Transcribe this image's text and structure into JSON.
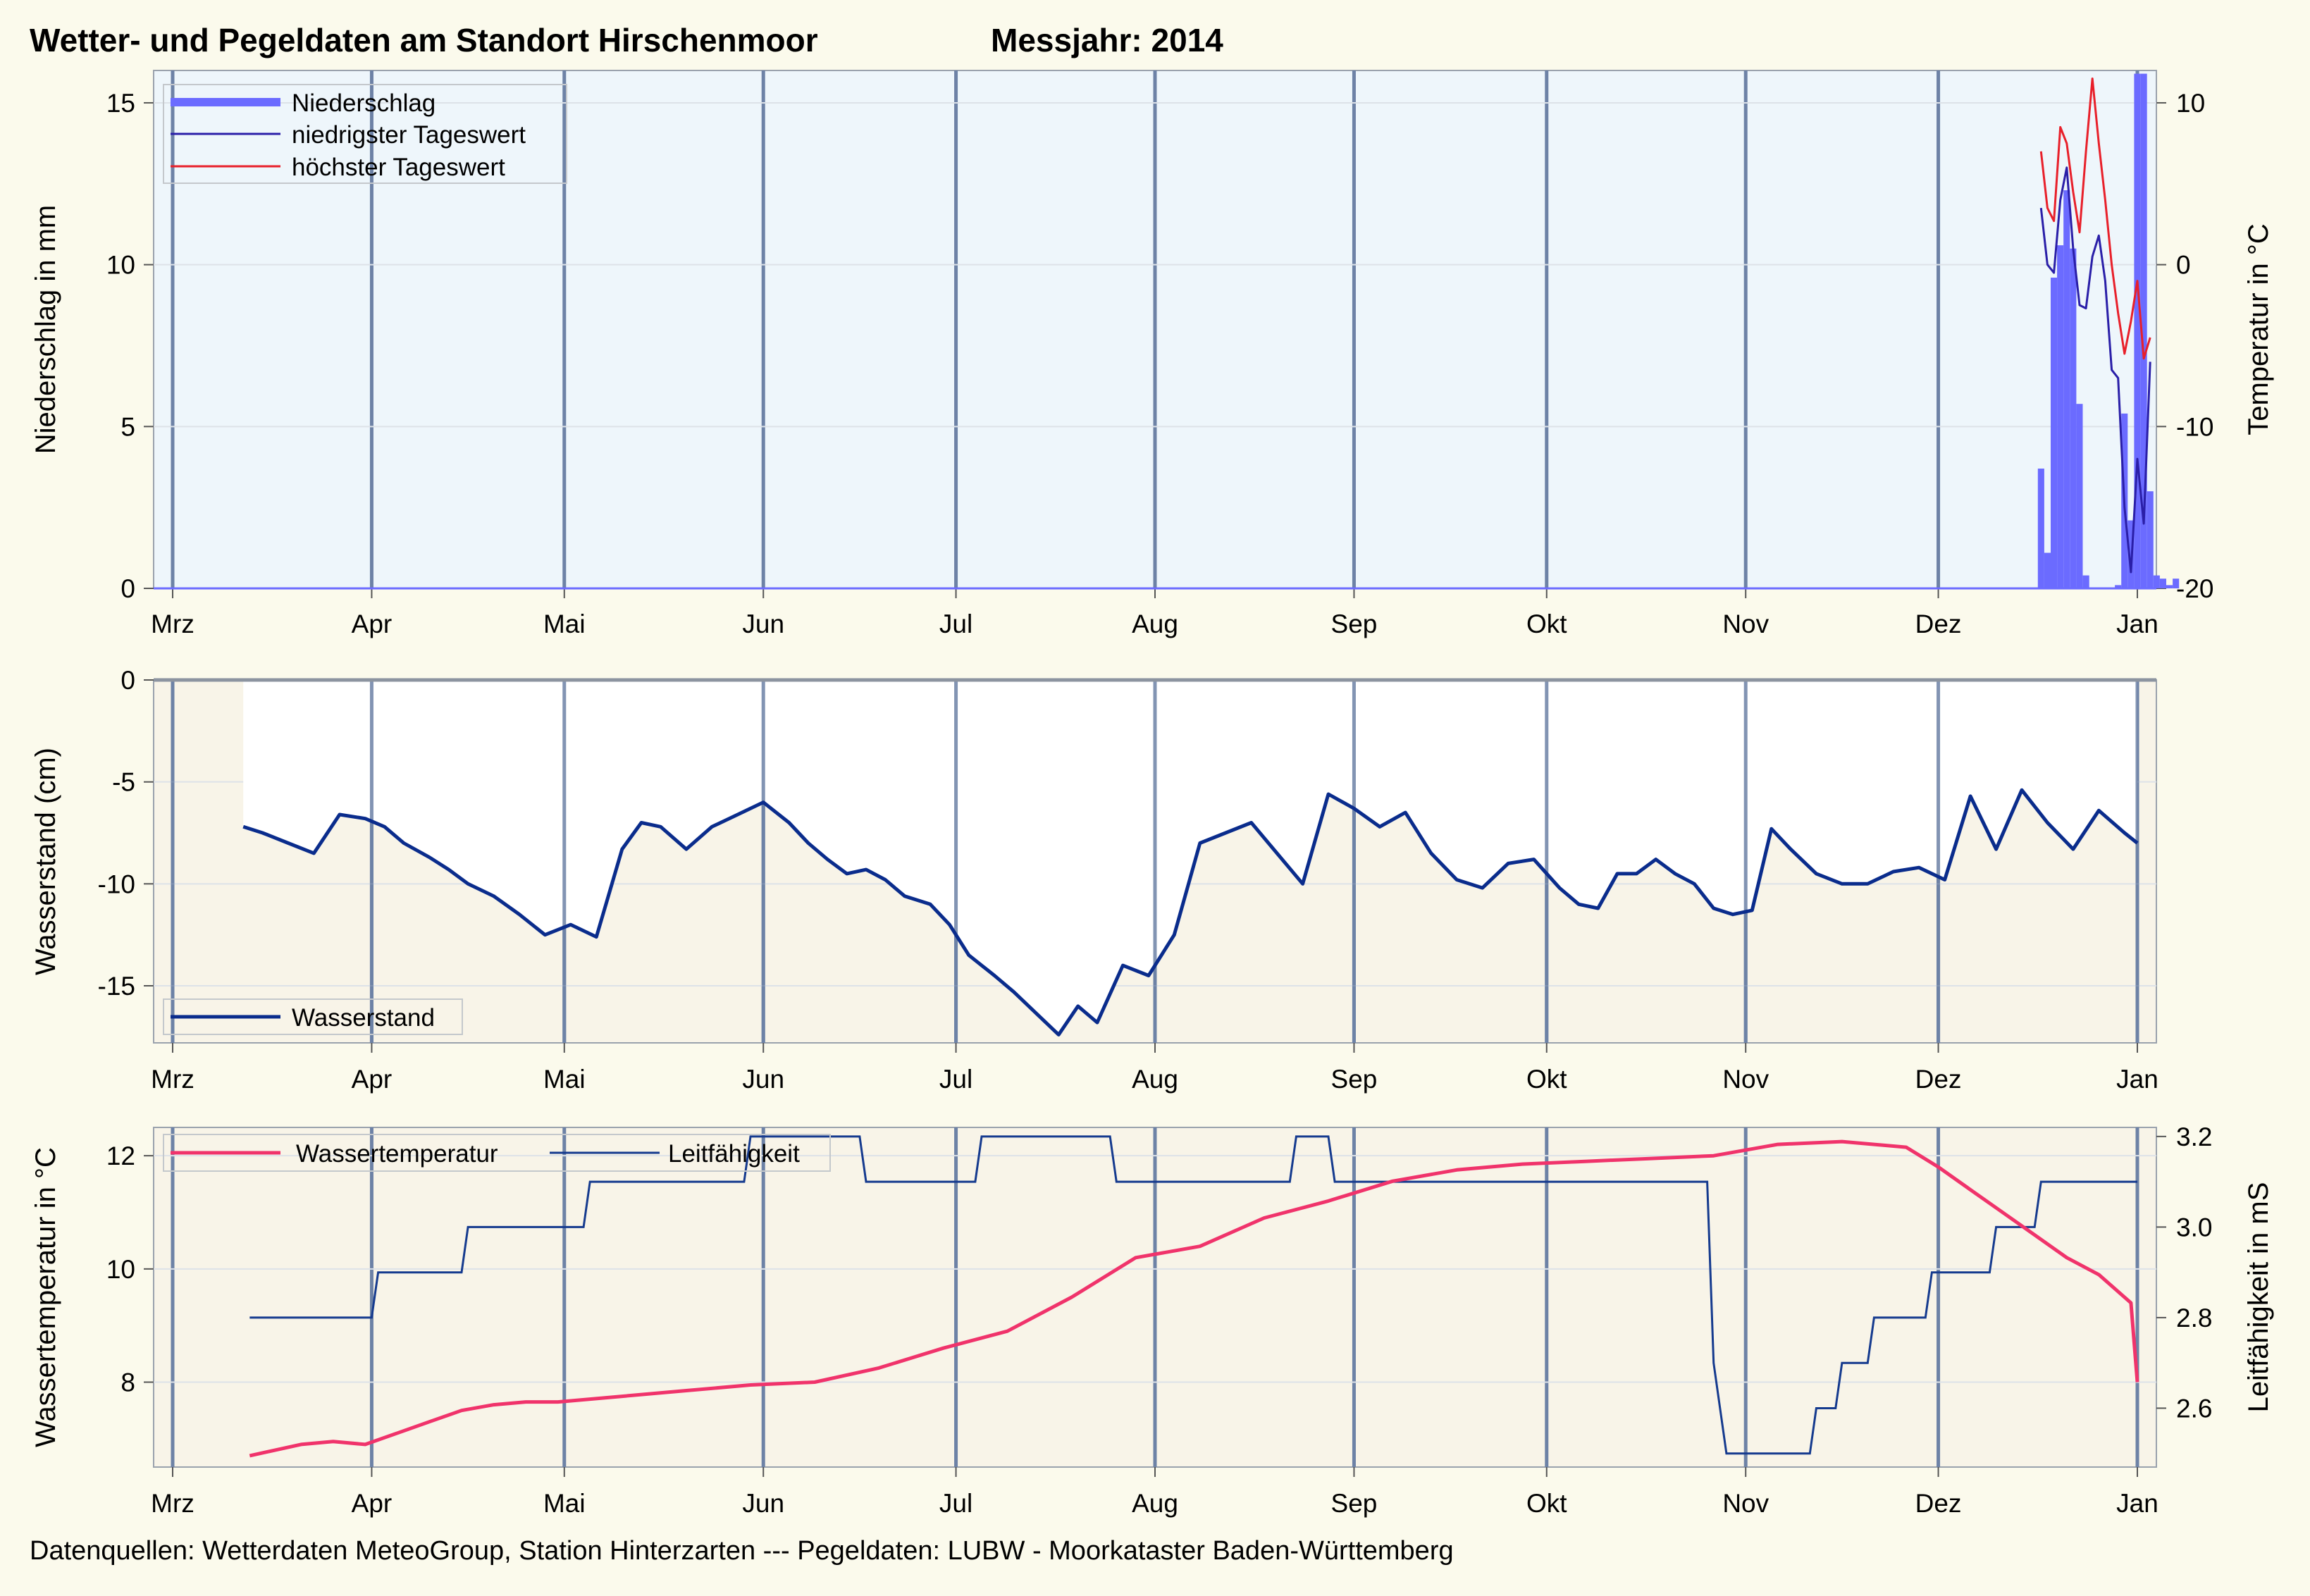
{
  "title": "Wetter- und Pegeldaten am Standort Hirschenmoor",
  "year_label": "Messjahr:  2014",
  "footer": "Datenquellen: Wetterdaten MeteoGroup, Station Hinterzarten --- Pegeldaten:  LUBW - Moorkataster Baden-Württemberg",
  "colors": {
    "precip": "#6b6bff",
    "tmin": "#2a1fa8",
    "tmax": "#e8202a",
    "water_level": "#0a2c8c",
    "water_temp": "#f0336b",
    "conductivity": "#153a8e",
    "panel1_bg": "#eef6fb",
    "panel_bg": "#f8f4e8",
    "month_line": "#6d82a6"
  },
  "chart_data": [
    {
      "type": "bar",
      "name": "weather",
      "xlabel": "",
      "months": [
        "Mrz",
        "Apr",
        "Mai",
        "Jun",
        "Jul",
        "Aug",
        "Sep",
        "Okt",
        "Nov",
        "Dez",
        "Jan"
      ],
      "ylabel": "Niederschlag in mm",
      "ylim": [
        0,
        16
      ],
      "yticks": [
        0,
        5,
        10,
        15
      ],
      "y2label": "Temperatur in °C",
      "y2lim": [
        -20,
        12
      ],
      "y2ticks": [
        -20,
        -10,
        0,
        10
      ],
      "grid": true,
      "legend_position": "top-left",
      "series": [
        {
          "name": "Niederschlag",
          "type": "bar",
          "days": [
            291,
            292,
            293,
            294,
            295,
            296,
            297,
            298,
            299,
            300,
            301,
            302,
            303,
            304,
            305,
            306,
            307,
            308,
            309,
            310,
            311,
            312
          ],
          "values": [
            3.7,
            1.1,
            9.6,
            10.6,
            12.3,
            10.5,
            5.7,
            0.4,
            0,
            0,
            0,
            0,
            0.1,
            5.4,
            2.1,
            15.9,
            15.9,
            3.0,
            0.4,
            0.3,
            0.1,
            0.3
          ]
        },
        {
          "name": "niedrigster Tageswert",
          "type": "line",
          "days": [
            291,
            292,
            293,
            294,
            295,
            296,
            297,
            298,
            299,
            300,
            301,
            302,
            303,
            304,
            305,
            306,
            307,
            308
          ],
          "values": [
            3.5,
            0,
            -0.5,
            4,
            6,
            1,
            -2.5,
            -2.7,
            0.5,
            1.8,
            -1,
            -6.5,
            -7,
            -15,
            -19,
            -12,
            -16,
            -6
          ]
        },
        {
          "name": "höchster Tageswert",
          "type": "line",
          "days": [
            291,
            292,
            293,
            294,
            295,
            296,
            297,
            298,
            299,
            300,
            301,
            302,
            303,
            304,
            305,
            306,
            307,
            308
          ],
          "values": [
            7,
            3.5,
            2.7,
            8.5,
            7.5,
            4.5,
            2,
            7,
            11.5,
            7.5,
            4,
            0,
            -3,
            -5.5,
            -3.5,
            -1,
            -5.8,
            -4.5
          ]
        }
      ]
    },
    {
      "type": "line",
      "name": "water_level",
      "xlabel": "",
      "months": [
        "Mrz",
        "Apr",
        "Mai",
        "Jun",
        "Jul",
        "Aug",
        "Sep",
        "Okt",
        "Nov",
        "Dez",
        "Jan"
      ],
      "ylabel": "Wasserstand (cm)",
      "ylim": [
        -17.8,
        0
      ],
      "yticks": [
        -15,
        -10,
        -5,
        0
      ],
      "grid": true,
      "legend_position": "bottom-left",
      "series": [
        {
          "name": "Wasserstand",
          "days": [
            11,
            14,
            18,
            22,
            26,
            30,
            33,
            36,
            40,
            43,
            46,
            50,
            54,
            58,
            62,
            66,
            70,
            73,
            76,
            80,
            84,
            88,
            92,
            96,
            99,
            102,
            105,
            108,
            111,
            114,
            118,
            121,
            124,
            128,
            131,
            135,
            138,
            141,
            144,
            148,
            152,
            156,
            160,
            164,
            168,
            172,
            176,
            180,
            184,
            188,
            192,
            196,
            200,
            204,
            208,
            212,
            216,
            219,
            222,
            225,
            228,
            231,
            234,
            237,
            240,
            243,
            246,
            249,
            252,
            256,
            260,
            264,
            268,
            272,
            276,
            280,
            284,
            288,
            292,
            296,
            300,
            304,
            306
          ],
          "values": [
            -7.2,
            -7.5,
            -8.0,
            -8.5,
            -6.6,
            -6.8,
            -7.2,
            -8.0,
            -8.7,
            -9.3,
            -10.0,
            -10.6,
            -11.5,
            -12.5,
            -12.0,
            -12.6,
            -8.3,
            -7.0,
            -7.2,
            -8.3,
            -7.2,
            -6.6,
            -6.0,
            -7.0,
            -8.0,
            -8.8,
            -9.5,
            -9.3,
            -9.8,
            -10.6,
            -11.0,
            -12.0,
            -13.5,
            -14.5,
            -15.3,
            -16.5,
            -17.4,
            -16.0,
            -16.8,
            -14.0,
            -14.5,
            -12.5,
            -8.0,
            -7.5,
            -7.0,
            -8.5,
            -10.0,
            -5.6,
            -6.3,
            -7.2,
            -6.5,
            -8.5,
            -9.8,
            -10.2,
            -9.0,
            -8.8,
            -10.2,
            -11.0,
            -11.2,
            -9.5,
            -9.5,
            -8.8,
            -9.5,
            -10.0,
            -11.2,
            -11.5,
            -11.3,
            -7.3,
            -8.3,
            -9.5,
            -10.0,
            -10.0,
            -9.4,
            -9.2,
            -9.8,
            -5.7,
            -8.3,
            -5.4,
            -7.0,
            -8.3,
            -6.4,
            -7.5,
            -8.0
          ]
        }
      ]
    },
    {
      "type": "line",
      "name": "water_temp_conductivity",
      "xlabel": "",
      "months": [
        "Mrz",
        "Apr",
        "Mai",
        "Jun",
        "Jul",
        "Aug",
        "Sep",
        "Okt",
        "Nov",
        "Dez",
        "Jan"
      ],
      "ylabel": "Wassertemperatur in °C",
      "ylim": [
        6.5,
        12.5
      ],
      "yticks": [
        8,
        10,
        12
      ],
      "y2label": "Leitfähigkeit in mS",
      "y2lim": [
        2.47,
        3.22
      ],
      "y2ticks": [
        2.6,
        2.8,
        3.0,
        3.2
      ],
      "grid": true,
      "legend_position": "top-left",
      "series": [
        {
          "name": "Wassertemperatur",
          "axis": "left",
          "days": [
            12,
            20,
            25,
            30,
            35,
            40,
            45,
            50,
            55,
            60,
            70,
            80,
            90,
            100,
            110,
            120,
            130,
            140,
            150,
            160,
            170,
            180,
            190,
            200,
            210,
            220,
            230,
            240,
            250,
            260,
            270,
            275,
            280,
            285,
            290,
            295,
            300,
            305,
            310,
            306
          ],
          "values": [
            6.7,
            6.9,
            6.95,
            6.9,
            7.1,
            7.3,
            7.5,
            7.6,
            7.65,
            7.65,
            7.75,
            7.85,
            7.95,
            8.0,
            8.25,
            8.6,
            8.9,
            9.5,
            10.2,
            10.4,
            10.9,
            11.2,
            11.55,
            11.75,
            11.85,
            11.9,
            11.95,
            12.0,
            12.2,
            12.25,
            12.15,
            11.8,
            11.4,
            11.0,
            10.6,
            10.2,
            9.9,
            9.4,
            8.8,
            8.0
          ]
        },
        {
          "name": "Leitfähigkeit",
          "axis": "right",
          "days": [
            12,
            31,
            32,
            45,
            46,
            64,
            65,
            89,
            90,
            107,
            108,
            125,
            126,
            146,
            147,
            174,
            175,
            180,
            181,
            239,
            240,
            242,
            243,
            255,
            256,
            259,
            260,
            264,
            265,
            273,
            274,
            283,
            284,
            290,
            291,
            306
          ],
          "values": [
            2.8,
            2.8,
            2.9,
            2.9,
            3.0,
            3.0,
            3.1,
            3.1,
            3.2,
            3.2,
            3.1,
            3.1,
            3.2,
            3.2,
            3.1,
            3.1,
            3.2,
            3.2,
            3.1,
            3.1,
            2.7,
            2.5,
            2.5,
            2.5,
            2.6,
            2.6,
            2.7,
            2.7,
            2.8,
            2.8,
            2.9,
            2.9,
            3.0,
            3.0,
            3.1,
            3.1
          ]
        }
      ]
    }
  ]
}
